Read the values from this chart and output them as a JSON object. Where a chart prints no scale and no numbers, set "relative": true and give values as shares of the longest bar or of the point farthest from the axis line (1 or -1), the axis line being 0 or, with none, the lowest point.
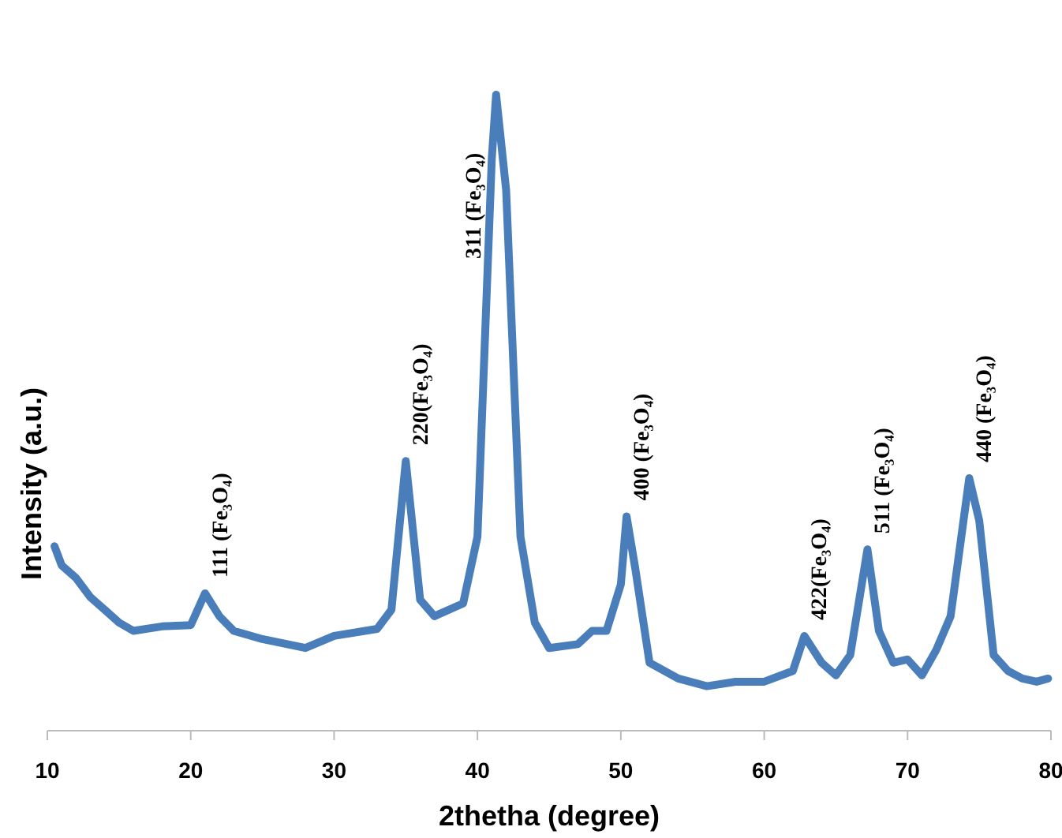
{
  "chart_data": {
    "type": "line",
    "xlabel": "2thetha (degree)",
    "ylabel": "Intensity (a.u.)",
    "relative": true,
    "xlim": [
      10,
      80
    ],
    "xticks": [
      10,
      20,
      30,
      40,
      50,
      60,
      70,
      80
    ],
    "grid": false,
    "marker": "none",
    "line_style": "solid",
    "series": [
      {
        "color": "#4a7ebb",
        "x": [
          10.5,
          11,
          12,
          13,
          14,
          15,
          16,
          18,
          20,
          21,
          22,
          23,
          25,
          28,
          30,
          33,
          34,
          35,
          36,
          37,
          39,
          40,
          41,
          41.3,
          42,
          43,
          44,
          45,
          47,
          48,
          49,
          50,
          50.4,
          51,
          52,
          54,
          56,
          58,
          60,
          62,
          62.8,
          64,
          65,
          66,
          67.2,
          68,
          69,
          70,
          71,
          72,
          73,
          74.3,
          75,
          76,
          77,
          78,
          79,
          79.8
        ],
        "values": [
          0.29,
          0.26,
          0.24,
          0.21,
          0.19,
          0.17,
          0.157,
          0.164,
          0.166,
          0.216,
          0.18,
          0.157,
          0.144,
          0.13,
          0.149,
          0.16,
          0.19,
          0.424,
          0.206,
          0.18,
          0.2,
          0.305,
          0.9,
          1,
          0.85,
          0.305,
          0.17,
          0.13,
          0.136,
          0.157,
          0.157,
          0.23,
          0.337,
          0.256,
          0.107,
          0.082,
          0.07,
          0.077,
          0.077,
          0.094,
          0.149,
          0.107,
          0.087,
          0.119,
          0.285,
          0.157,
          0.107,
          0.112,
          0.087,
          0.127,
          0.18,
          0.397,
          0.33,
          0.119,
          0.094,
          0.082,
          0.077,
          0.082
        ]
      }
    ],
    "annotations": [
      {
        "text": "111 (Fe₃O₄)",
        "x": 21,
        "y": 0.216
      },
      {
        "text": "220(Fe₃O₄)",
        "x": 35,
        "y": 0.424
      },
      {
        "text": "311 (Fe₃O₄)",
        "x": 41.3,
        "y": 1
      },
      {
        "text": "400 (Fe₃O₄)",
        "x": 50.4,
        "y": 0.337
      },
      {
        "text": "422(Fe₃O₄)",
        "x": 62.8,
        "y": 0.149
      },
      {
        "text": "511 (Fe₃O₄)",
        "x": 67.2,
        "y": 0.285
      },
      {
        "text": "440 (Fe₃O₄)",
        "x": 74.3,
        "y": 0.397
      }
    ]
  }
}
